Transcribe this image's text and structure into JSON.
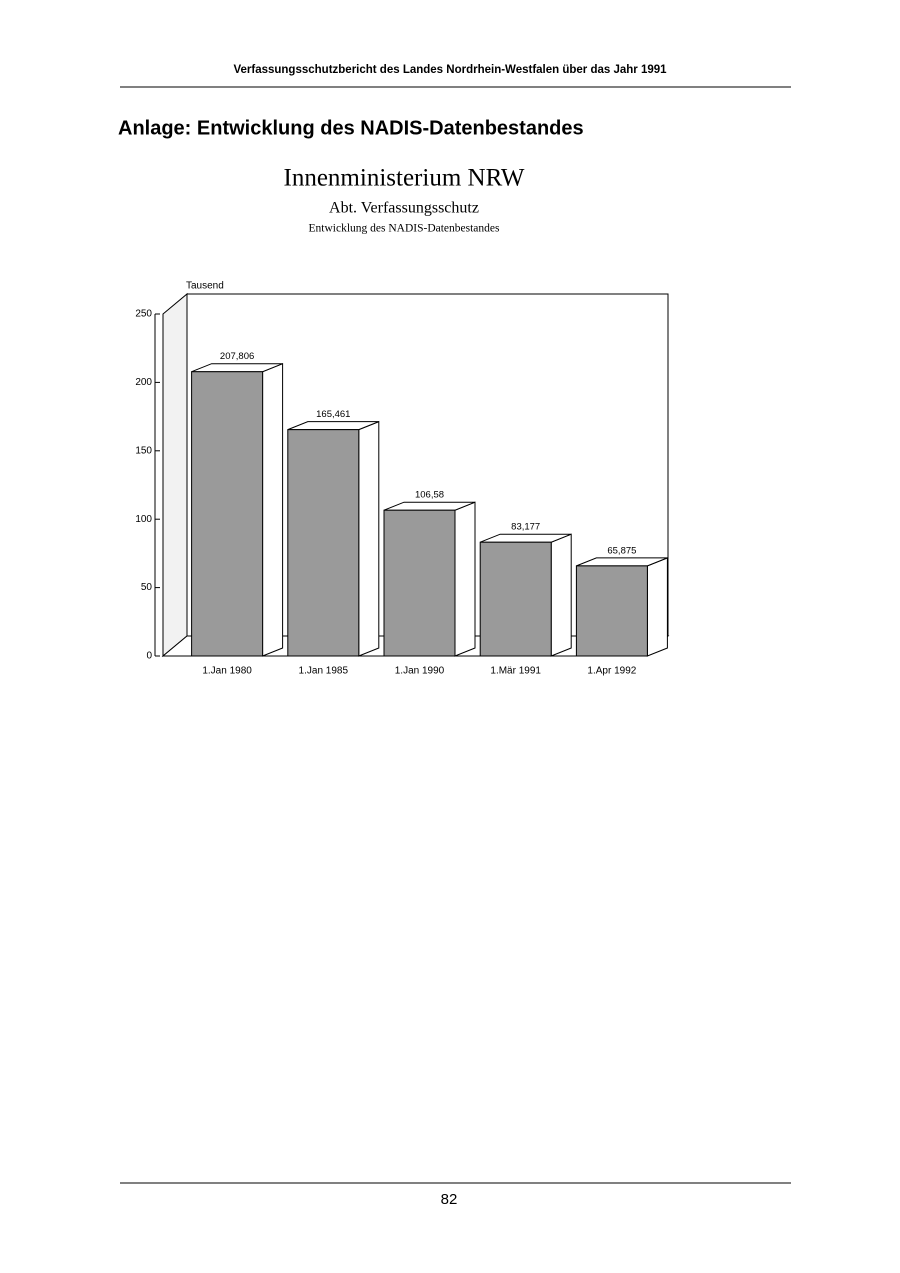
{
  "header": "Verfassungsschutzbericht des Landes Nordrhein-Westfalen über das Jahr 1991",
  "heading": "Anlage: Entwicklung des NADIS-Datenbestandes",
  "chart_data": {
    "type": "bar3d",
    "title": "Innenministerium NRW",
    "subtitle": "Abt. Verfassungsschutz",
    "caption": "Entwicklung des NADIS-Datenbestandes",
    "y_label": "Tausend",
    "categories": [
      "1.Jan 1980",
      "1.Jan 1985",
      "1.Jan 1990",
      "1.Mär 1991",
      "1.Apr 1992"
    ],
    "values": [
      207.806,
      165.461,
      106.58,
      83.177,
      65.875
    ],
    "value_labels": [
      "207,806",
      "165,461",
      "106,58",
      "83,177",
      "65,875"
    ],
    "color": "#9a9a9a",
    "ylim": [
      0,
      250
    ],
    "yticks": [
      0,
      50,
      100,
      150,
      200,
      250
    ]
  },
  "page_number": "82"
}
